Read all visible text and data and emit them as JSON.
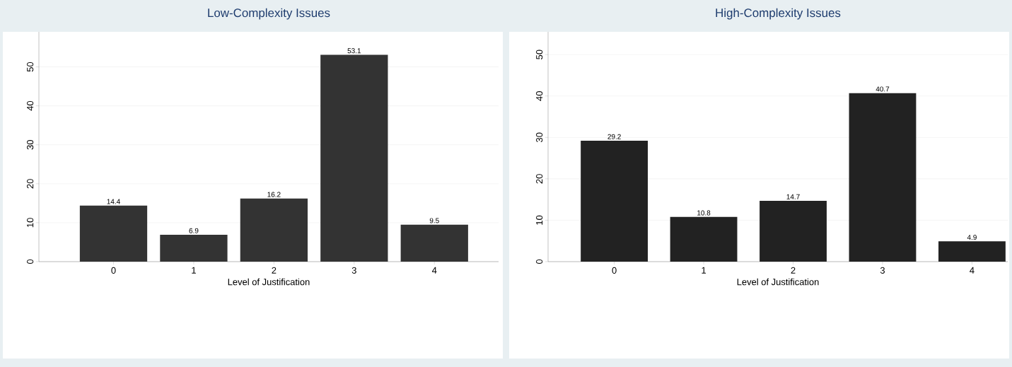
{
  "chart_data": [
    {
      "type": "bar",
      "title": "Low-Complexity Issues",
      "xlabel": "Level of Justification",
      "categories": [
        "0",
        "1",
        "2",
        "3",
        "4"
      ],
      "values": [
        14.4,
        6.9,
        16.2,
        53.1,
        9.5
      ],
      "color": "#333333",
      "ylim": [
        0,
        59
      ],
      "yticks": [
        0,
        10,
        20,
        30,
        40,
        50
      ],
      "grid": "y",
      "data_labels": true
    },
    {
      "type": "bar",
      "title": "High-Complexity Issues",
      "xlabel": "Level of Justification",
      "categories": [
        "0",
        "1",
        "2",
        "3",
        "4"
      ],
      "values": [
        29.2,
        10.8,
        14.7,
        40.7,
        4.9
      ],
      "color": "#222222",
      "ylim": [
        0,
        55.5
      ],
      "yticks": [
        0,
        10,
        20,
        30,
        40,
        50
      ],
      "grid": "y",
      "data_labels": true
    }
  ]
}
